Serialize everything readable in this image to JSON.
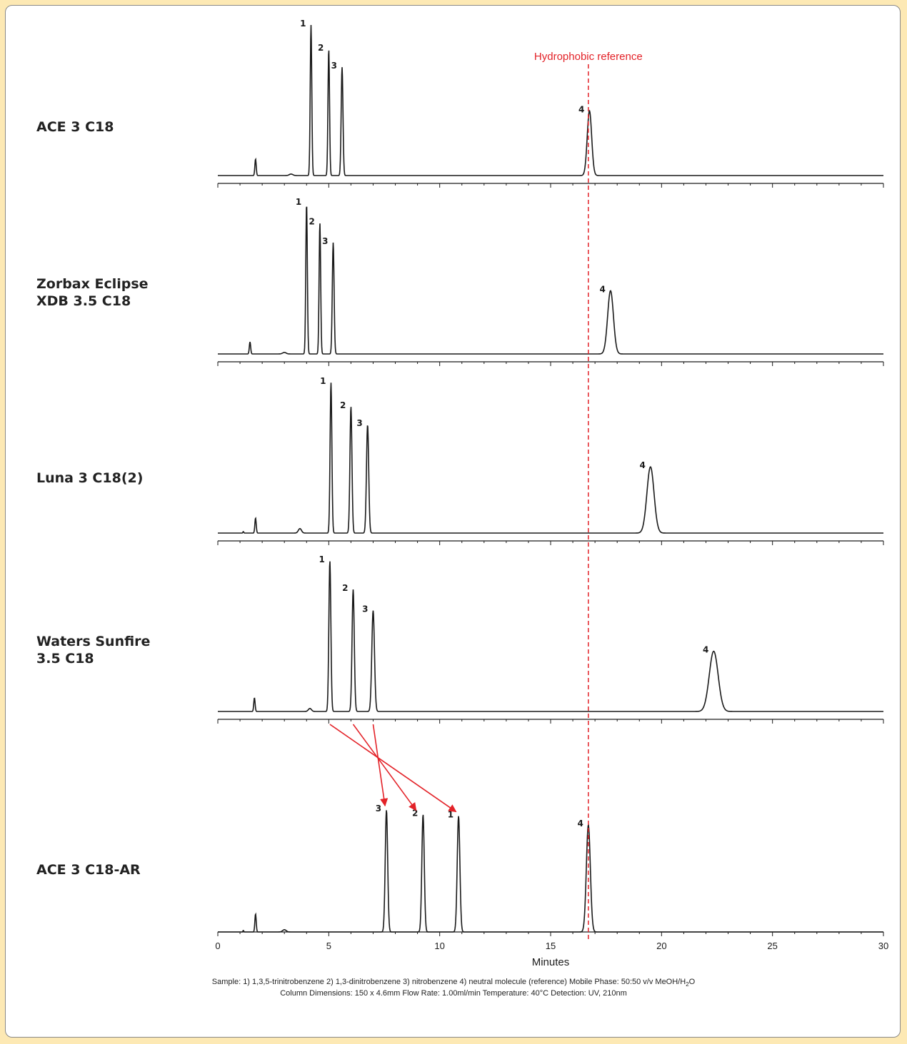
{
  "chart_data": {
    "type": "line",
    "title": "",
    "xlabel": "Minutes",
    "ylabel": "",
    "xlim": [
      0,
      30
    ],
    "x_ticks": [
      0,
      5,
      10,
      15,
      20,
      25,
      30
    ],
    "grid": false,
    "reference_line": {
      "x": 16.7,
      "label": "Hydrophobic reference",
      "color": "#e32228",
      "style": "dashed"
    },
    "series": [
      {
        "name": "ACE 3 C18",
        "label_lines": [
          "ACE 3 C18"
        ],
        "peaks": [
          {
            "label": "",
            "rt": 1.7,
            "height": 0.11,
            "width": 0.03
          },
          {
            "label": "",
            "rt": 3.3,
            "height": 0.01,
            "width": 0.08
          },
          {
            "label": "1",
            "rt": 4.2,
            "height": 1.0,
            "width": 0.035
          },
          {
            "label": "2",
            "rt": 5.0,
            "height": 0.84,
            "width": 0.035
          },
          {
            "label": "3",
            "rt": 5.6,
            "height": 0.72,
            "width": 0.04
          },
          {
            "label": "4",
            "rt": 16.75,
            "height": 0.43,
            "width": 0.1
          }
        ]
      },
      {
        "name": "Zorbax Eclipse XDB 3.5 C18",
        "label_lines": [
          "Zorbax Eclipse",
          "XDB 3.5 C18"
        ],
        "peaks": [
          {
            "label": "",
            "rt": 1.45,
            "height": 0.08,
            "width": 0.03
          },
          {
            "label": "",
            "rt": 3.0,
            "height": 0.01,
            "width": 0.08
          },
          {
            "label": "1",
            "rt": 4.0,
            "height": 1.0,
            "width": 0.035
          },
          {
            "label": "2",
            "rt": 4.6,
            "height": 0.87,
            "width": 0.035
          },
          {
            "label": "3",
            "rt": 5.2,
            "height": 0.74,
            "width": 0.04
          },
          {
            "label": "4",
            "rt": 17.7,
            "height": 0.42,
            "width": 0.13
          }
        ]
      },
      {
        "name": "Luna 3 C18(2)",
        "label_lines": [
          "Luna 3 C18(2)"
        ],
        "peaks": [
          {
            "label": "",
            "rt": 1.15,
            "height": 0.01,
            "width": 0.02
          },
          {
            "label": "",
            "rt": 1.7,
            "height": 0.1,
            "width": 0.03
          },
          {
            "label": "",
            "rt": 3.7,
            "height": 0.03,
            "width": 0.07
          },
          {
            "label": "1",
            "rt": 5.1,
            "height": 1.0,
            "width": 0.04
          },
          {
            "label": "2",
            "rt": 6.0,
            "height": 0.84,
            "width": 0.045
          },
          {
            "label": "3",
            "rt": 6.75,
            "height": 0.72,
            "width": 0.05
          },
          {
            "label": "4",
            "rt": 19.5,
            "height": 0.44,
            "width": 0.16
          }
        ]
      },
      {
        "name": "Waters Sunfire 3.5 C18",
        "label_lines": [
          "Waters Sunfire",
          "3.5 C18"
        ],
        "peaks": [
          {
            "label": "",
            "rt": 1.65,
            "height": 0.09,
            "width": 0.03
          },
          {
            "label": "",
            "rt": 4.15,
            "height": 0.02,
            "width": 0.07
          },
          {
            "label": "1",
            "rt": 5.05,
            "height": 1.0,
            "width": 0.045
          },
          {
            "label": "2",
            "rt": 6.1,
            "height": 0.81,
            "width": 0.05
          },
          {
            "label": "3",
            "rt": 7.0,
            "height": 0.67,
            "width": 0.06
          },
          {
            "label": "4",
            "rt": 22.35,
            "height": 0.4,
            "width": 0.2
          }
        ]
      },
      {
        "name": "ACE 3 C18-AR",
        "label_lines": [
          "ACE 3 C18-AR"
        ],
        "peaks": [
          {
            "label": "",
            "rt": 1.15,
            "height": 0.01,
            "width": 0.02
          },
          {
            "label": "",
            "rt": 1.7,
            "height": 0.12,
            "width": 0.03
          },
          {
            "label": "",
            "rt": 3.0,
            "height": 0.015,
            "width": 0.08
          },
          {
            "label": "3",
            "rt": 7.6,
            "height": 0.81,
            "width": 0.055
          },
          {
            "label": "2",
            "rt": 9.25,
            "height": 0.78,
            "width": 0.055
          },
          {
            "label": "1",
            "rt": 10.85,
            "height": 0.77,
            "width": 0.06
          },
          {
            "label": "4",
            "rt": 16.7,
            "height": 0.71,
            "width": 0.09
          }
        ]
      }
    ],
    "elution_order_arrows": [
      {
        "compound": "1",
        "from_rt": 5.05,
        "to_rt": 10.8
      },
      {
        "compound": "2",
        "from_rt": 6.1,
        "to_rt": 9.0
      },
      {
        "compound": "3",
        "from_rt": 7.0,
        "to_rt": 7.6
      }
    ]
  },
  "footnote": {
    "line1_main": "Sample: 1) 1,3,5-trinitrobenzene  2) 1,3-dinitrobenzene  3) nitrobenzene  4) neutral molecule (reference)     Mobile Phase: 50:50 v/v MeOH/H",
    "line1_sub": "2",
    "line1_end": "O",
    "line2": "Column Dimensions: 150 x 4.6mm    Flow Rate: 1.00ml/min    Temperature: 40°C    Detection: UV, 210nm"
  },
  "colors": {
    "trace": "#1a1a1a",
    "accent": "#e32228",
    "background": "#fde9b4"
  }
}
